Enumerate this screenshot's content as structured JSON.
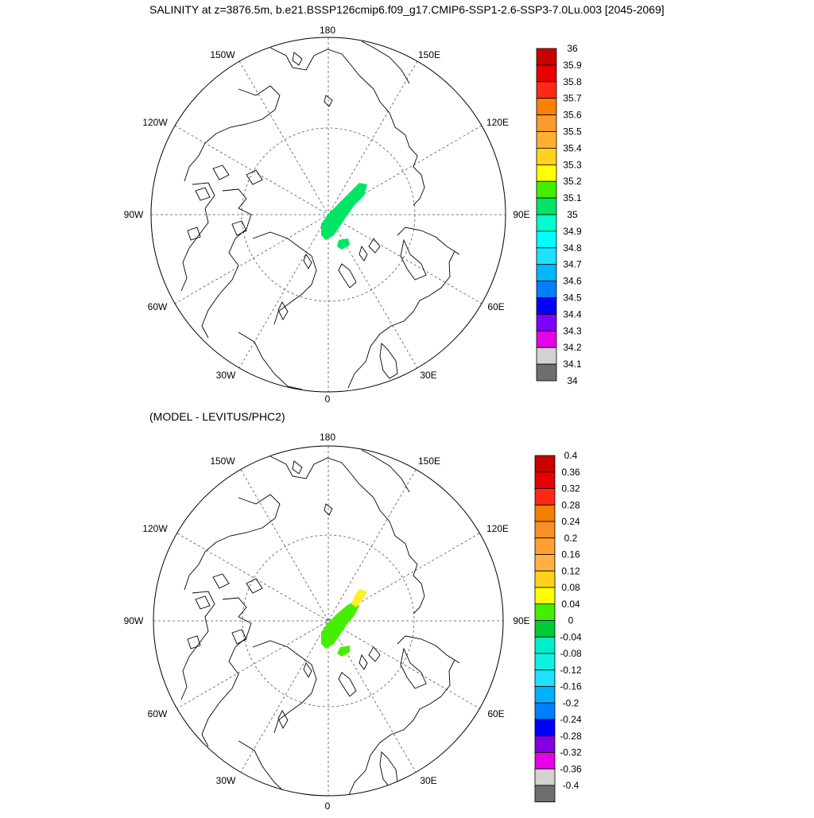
{
  "title": "SALINITY at z=3876.5m, b.e21.BSSP126cmip6.f09_g17.CMIP6-SSP1-2.6-SSP3-7.0Lu.003 [2045-2069]",
  "subtitle": "(MODEL - LEVITUS/PHC2)",
  "longitude_labels": {
    "lon_180": "180",
    "lon_150E": "150E",
    "lon_120E": "120E",
    "lon_90E": "90E",
    "lon_60E": "60E",
    "lon_30E": "30E",
    "lon_0": "0",
    "lon_30W": "30W",
    "lon_60W": "60W",
    "lon_90W": "90W",
    "lon_120W": "120W",
    "lon_150W": "150W"
  },
  "colorbars": {
    "top": {
      "labels": [
        "36",
        "35.9",
        "35.8",
        "35.7",
        "35.6",
        "35.5",
        "35.4",
        "35.3",
        "35.2",
        "35.1",
        "35",
        "34.9",
        "34.8",
        "34.7",
        "34.6",
        "34.5",
        "34.4",
        "34.3",
        "34.2",
        "34.1",
        "34"
      ],
      "colors": [
        "#c80000",
        "#e60000",
        "#ff2814",
        "#ff8000",
        "#ff9a2e",
        "#ffb030",
        "#ffd21e",
        "#ffff00",
        "#44ee00",
        "#00e664",
        "#00ffcc",
        "#00ffff",
        "#1ee0ff",
        "#00b8ff",
        "#0080ff",
        "#0000ff",
        "#8000ff",
        "#e600e6",
        "#d2d2d2",
        "#6e6e6e"
      ]
    },
    "bottom": {
      "labels": [
        "0.4",
        "0.36",
        "0.32",
        "0.28",
        "0.24",
        "0.2",
        "0.16",
        "0.12",
        "0.08",
        "0.04",
        "0",
        "-0.04",
        "-0.08",
        "-0.12",
        "-0.16",
        "-0.2",
        "-0.24",
        "-0.28",
        "-0.32",
        "-0.36",
        "-0.4"
      ],
      "colors": [
        "#c80000",
        "#e60000",
        "#ff2814",
        "#f08000",
        "#f89024",
        "#ffa030",
        "#ffb040",
        "#ffd21e",
        "#ffff00",
        "#44ee00",
        "#00cc33",
        "#00eecc",
        "#10f0e0",
        "#1ee0ff",
        "#00b0ff",
        "#0080ff",
        "#0000ff",
        "#8000e0",
        "#e600e6",
        "#d2d2d2",
        "#6e6e6e"
      ]
    }
  },
  "field_colors": {
    "top_patch": "#00e664",
    "bottom_patch": "#44ee00",
    "bottom_patch_highlight": "#ffee22"
  }
}
